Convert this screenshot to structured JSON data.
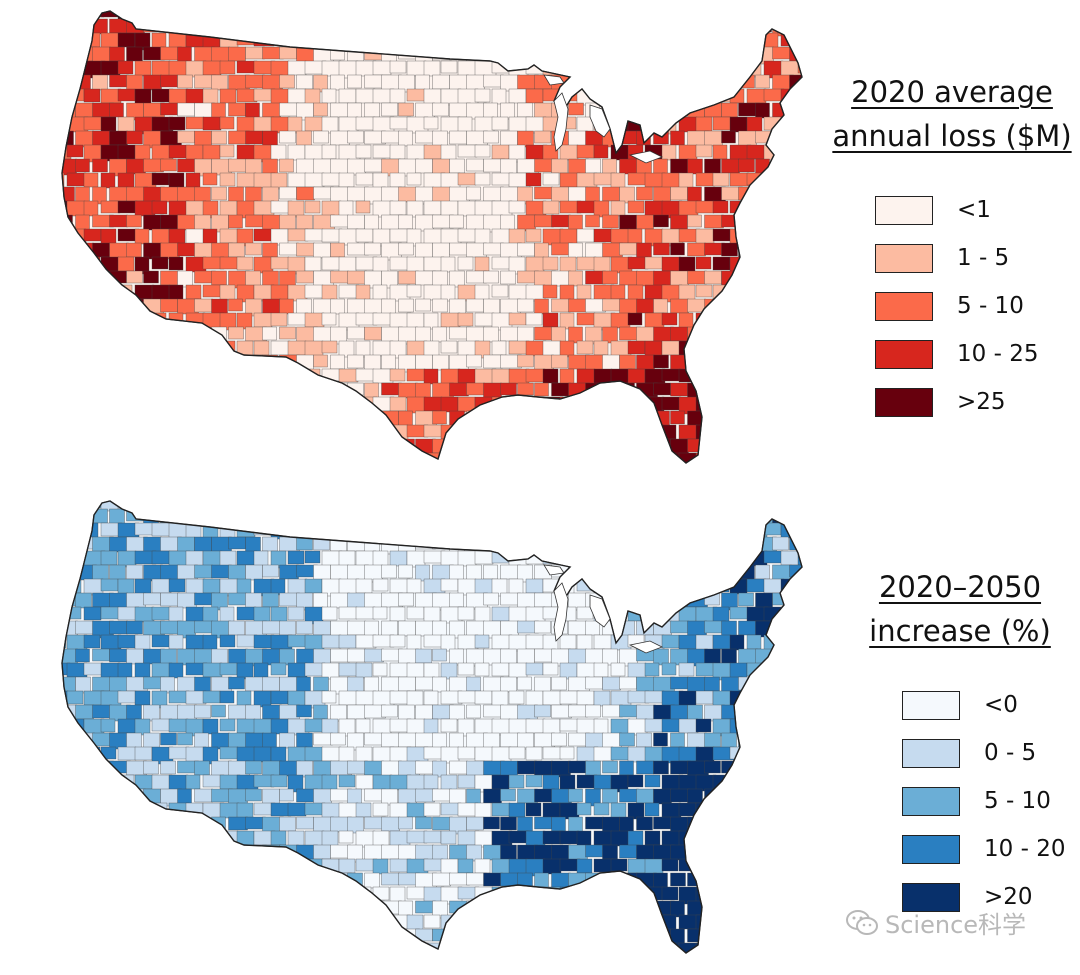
{
  "maps": [
    {
      "legend": {
        "title_line1": "2020 average",
        "title_line2": "annual loss ($M)",
        "items": [
          {
            "label": "<1",
            "color": "#fdf3ee"
          },
          {
            "label": "1 - 5",
            "color": "#fcbba1"
          },
          {
            "label": "5 - 10",
            "color": "#fb6a4a"
          },
          {
            "label": "10 - 25",
            "color": "#d7261e"
          },
          {
            "label": ">25",
            "color": "#67000d"
          }
        ]
      }
    },
    {
      "legend": {
        "title_line1": "2020–2050",
        "title_line2": "increase (%)",
        "items": [
          {
            "label": "<0",
            "color": "#f5f9fd"
          },
          {
            "label": "0 - 5",
            "color": "#c6dbef"
          },
          {
            "label": "5 - 10",
            "color": "#6baed6"
          },
          {
            "label": "10 - 20",
            "color": "#2a7fc1"
          },
          {
            "label": ">20",
            "color": "#08306b"
          }
        ]
      }
    }
  ],
  "watermark": {
    "text": "Science科学",
    "icon": "wechat-icon"
  }
}
